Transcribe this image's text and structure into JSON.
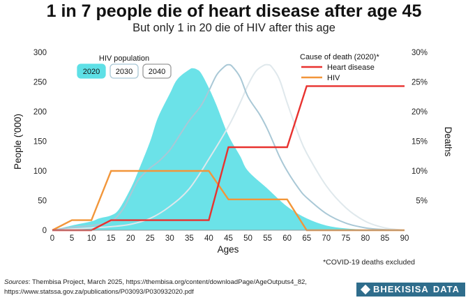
{
  "header": {
    "title": "1 in 7 people die of heart disease after age 45",
    "subtitle": "But only 1 in 20 die of HIV after this age"
  },
  "chart_data": {
    "type": "area",
    "xlabel": "Ages",
    "ylabel_left": "People ('000)",
    "ylabel_right": "Deaths",
    "x_ticks": [
      0,
      5,
      10,
      15,
      20,
      25,
      30,
      35,
      40,
      45,
      50,
      55,
      60,
      65,
      70,
      75,
      80,
      85,
      90
    ],
    "left_ticks": [
      0,
      50,
      100,
      150,
      200,
      250,
      300
    ],
    "right_ticks": [
      "5%",
      "10%",
      "15%",
      "20%",
      "25%",
      "30%"
    ],
    "right_tick_values": [
      5,
      10,
      15,
      20,
      25,
      30
    ],
    "xlim": [
      0,
      90
    ],
    "ylim_left": [
      0,
      300
    ],
    "ylim_right": [
      0,
      30
    ],
    "hiv_population": {
      "legend_title": "HIV population",
      "series": [
        {
          "name": "2020",
          "color": "#5ee0e6",
          "style": "area",
          "x": [
            0,
            5,
            10,
            12,
            15,
            17,
            20,
            22,
            25,
            27,
            30,
            32,
            35,
            36,
            37,
            38,
            40,
            42,
            45,
            48,
            50,
            55,
            60,
            65,
            70,
            75,
            80,
            85,
            90
          ],
          "values": [
            0,
            8,
            15,
            20,
            25,
            35,
            70,
            100,
            150,
            190,
            230,
            255,
            271,
            273,
            271,
            265,
            240,
            210,
            160,
            125,
            100,
            70,
            40,
            20,
            8,
            3,
            1,
            0,
            0
          ]
        },
        {
          "name": "2030",
          "color": "#a9c8d6",
          "style": "line",
          "x": [
            0,
            5,
            10,
            15,
            18,
            20,
            22,
            25,
            27,
            30,
            33,
            35,
            38,
            40,
            42,
            44,
            45,
            46,
            48,
            50,
            53,
            55,
            58,
            60,
            63,
            65,
            70,
            75,
            80,
            85,
            90
          ],
          "values": [
            0,
            5,
            8,
            15,
            35,
            60,
            85,
            105,
            115,
            135,
            165,
            185,
            210,
            235,
            262,
            276,
            279,
            276,
            258,
            225,
            195,
            170,
            125,
            100,
            70,
            55,
            28,
            12,
            4,
            1,
            0
          ]
        },
        {
          "name": "2040",
          "color": "#dfe8ec",
          "style": "line",
          "x": [
            0,
            5,
            10,
            15,
            20,
            25,
            30,
            35,
            40,
            45,
            48,
            50,
            52,
            54,
            55,
            56,
            58,
            60,
            63,
            65,
            70,
            75,
            80,
            85,
            90
          ],
          "values": [
            0,
            2,
            4,
            6,
            10,
            20,
            40,
            70,
            120,
            175,
            215,
            245,
            268,
            278,
            279,
            276,
            255,
            215,
            160,
            130,
            75,
            38,
            15,
            4,
            0
          ]
        }
      ]
    },
    "cause_of_death": {
      "legend_title": "Cause of death (2020)*",
      "series": [
        {
          "name": "Heart disease",
          "color": "#e8322f",
          "x": [
            0,
            10,
            15,
            40,
            45,
            60,
            65,
            90
          ],
          "values": [
            0,
            0,
            1.7,
            1.7,
            14,
            14,
            24.3,
            24.3
          ]
        },
        {
          "name": "HIV",
          "color": "#f2963a",
          "x": [
            0,
            5,
            10,
            15,
            40,
            45,
            60,
            65,
            90
          ],
          "values": [
            0,
            1.7,
            1.7,
            10,
            10,
            5.2,
            5.2,
            0,
            0
          ]
        }
      ]
    },
    "grid": false
  },
  "footer": {
    "note": "*COVID-19 deaths excluded",
    "sources_label": "Sources",
    "sources_text": ": Thembisa Project, March 2025, https://thembisa.org/content/downloadPage/AgeOutputs4_82, https://www.statssa.gov.za/publications/P03093/P030932020.pdf",
    "brand_label": "BHEKISISA",
    "brand_suffix": "DATA"
  }
}
